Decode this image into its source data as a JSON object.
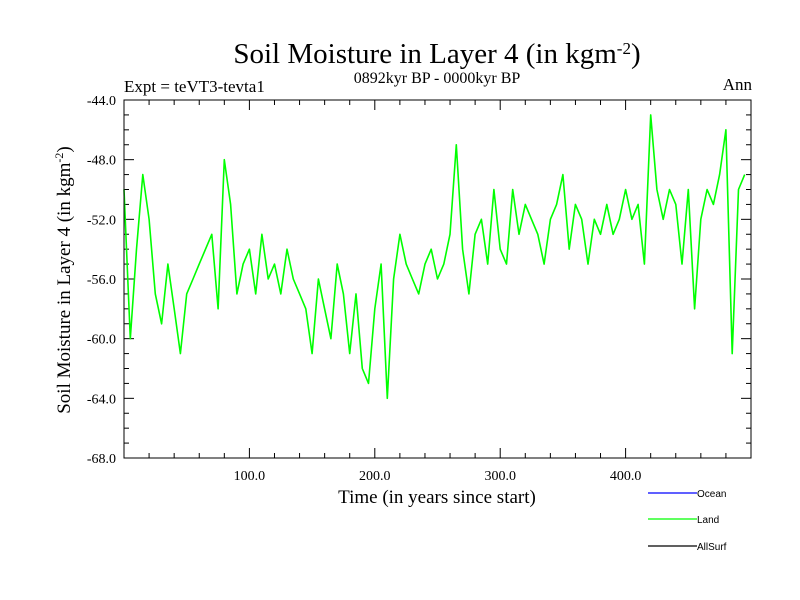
{
  "chart_data": {
    "type": "line",
    "title": "Soil Moisture in Layer 4 (in kgm",
    "title_sup": "-2",
    "title_close": ")",
    "subtitle_left": "Expt = teVT3-tevta1",
    "subtitle_center": "0892kyr BP - 0000kyr BP",
    "subtitle_right": "Ann",
    "xlabel": "Time (in years since start)",
    "ylabel": "Soil Moisture in Layer 4 (in kgm",
    "ylabel_sup": "-2",
    "ylabel_close": ")",
    "xlim": [
      0,
      500
    ],
    "ylim": [
      -68,
      -44
    ],
    "xticks": [
      100,
      200,
      300,
      400
    ],
    "xtick_labels": [
      "100.0",
      "200.0",
      "300.0",
      "400.0"
    ],
    "yticks": [
      -44,
      -48,
      -52,
      -56,
      -60,
      -64,
      -68
    ],
    "ytick_labels": [
      "-44.0",
      "-48.0",
      "-52.0",
      "-56.0",
      "-60.0",
      "-64.0",
      "-68.0"
    ],
    "legend_position": "bottom-right",
    "series": [
      {
        "name": "Ocean",
        "color": "#0000ff",
        "values": []
      },
      {
        "name": "Land",
        "color": "#00ff00",
        "x": [
          0,
          5,
          10,
          15,
          20,
          25,
          30,
          35,
          40,
          45,
          50,
          55,
          60,
          65,
          70,
          75,
          80,
          85,
          90,
          95,
          100,
          105,
          110,
          115,
          120,
          125,
          130,
          135,
          140,
          145,
          150,
          155,
          160,
          165,
          170,
          175,
          180,
          185,
          190,
          195,
          200,
          205,
          210,
          215,
          220,
          225,
          230,
          235,
          240,
          245,
          250,
          255,
          260,
          265,
          270,
          275,
          280,
          285,
          290,
          295,
          300,
          305,
          310,
          315,
          320,
          325,
          330,
          335,
          340,
          345,
          350,
          355,
          360,
          365,
          370,
          375,
          380,
          385,
          390,
          395,
          400,
          405,
          410,
          415,
          420,
          425,
          430,
          435,
          440,
          445,
          450,
          455,
          460,
          465,
          470,
          475,
          480,
          485,
          490,
          495
        ],
        "values": [
          -50,
          -60,
          -54,
          -49,
          -52,
          -57,
          -59,
          -55,
          -58,
          -61,
          -57,
          -56,
          -55,
          -54,
          -53,
          -58,
          -48,
          -51,
          -57,
          -55,
          -54,
          -57,
          -53,
          -56,
          -55,
          -57,
          -54,
          -56,
          -57,
          -58,
          -61,
          -56,
          -58,
          -60,
          -55,
          -57,
          -61,
          -57,
          -62,
          -63,
          -58,
          -55,
          -64,
          -56,
          -53,
          -55,
          -56,
          -57,
          -55,
          -54,
          -56,
          -55,
          -53,
          -47,
          -54,
          -57,
          -53,
          -52,
          -55,
          -50,
          -54,
          -55,
          -50,
          -53,
          -51,
          -52,
          -53,
          -55,
          -52,
          -51,
          -49,
          -54,
          -51,
          -52,
          -55,
          -52,
          -53,
          -51,
          -53,
          -52,
          -50,
          -52,
          -51,
          -55,
          -45,
          -50,
          -52,
          -50,
          -51,
          -55,
          -50,
          -58,
          -52,
          -50,
          -51,
          -49,
          -46,
          -61,
          -50,
          -49
        ]
      },
      {
        "name": "AllSurf",
        "color": "#000000",
        "values": []
      }
    ]
  }
}
